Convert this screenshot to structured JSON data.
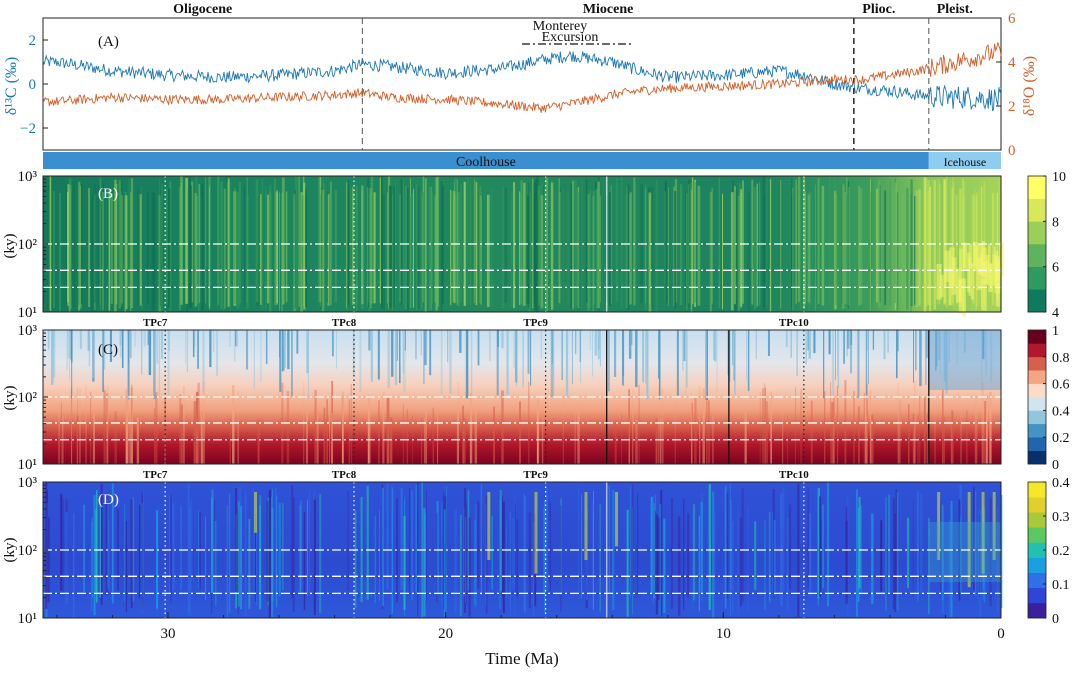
{
  "chart_data": {
    "type": "multi-panel",
    "x_axis": {
      "label": "Time (Ma)",
      "range": [
        34.5,
        0
      ],
      "ticks": [
        30,
        20,
        10,
        0
      ]
    },
    "epochs": [
      {
        "name": "Oligocene",
        "start": 34.5,
        "end": 23.0
      },
      {
        "name": "Miocene",
        "start": 23.0,
        "end": 5.3
      },
      {
        "name": "Plioc.",
        "start": 5.3,
        "end": 2.6
      },
      {
        "name": "Pleist.",
        "start": 2.6,
        "end": 0
      }
    ],
    "climate_states": [
      {
        "name": "Coolhouse",
        "start": 34.5,
        "end": 2.6,
        "color": "#3a8fd0"
      },
      {
        "name": "Icehouse",
        "start": 2.6,
        "end": 0,
        "color": "#8ecdf0"
      }
    ],
    "panel_a": {
      "label": "(A)",
      "annotation": [
        "Monterey",
        "Excursion"
      ],
      "annotation_range": [
        17.0,
        13.5
      ],
      "left_axis": {
        "label": "δ¹³C (‰)",
        "range": [
          -3,
          3
        ],
        "ticks": [
          -2,
          0,
          2
        ],
        "color": "#1f78b4"
      },
      "right_axis": {
        "label": "δ¹⁸O (‰)",
        "range": [
          0,
          6
        ],
        "ticks": [
          0,
          2,
          4,
          6
        ],
        "color": "#d4602a"
      },
      "series": [
        {
          "axis": "left",
          "color": "#1f78b4",
          "x": [
            34.0,
            32.0,
            30.0,
            28.0,
            26.0,
            24.0,
            23.0,
            22.0,
            20.0,
            18.0,
            16.5,
            15.5,
            14.0,
            13.0,
            12.0,
            10.0,
            8.0,
            7.0,
            6.0,
            5.0,
            4.0,
            3.0,
            2.0,
            1.0,
            0.0
          ],
          "y": [
            1.0,
            0.6,
            0.4,
            0.3,
            0.4,
            0.6,
            0.9,
            0.8,
            0.5,
            0.7,
            1.1,
            1.3,
            1.0,
            0.6,
            0.3,
            0.4,
            0.6,
            0.4,
            0.0,
            -0.2,
            -0.3,
            -0.5,
            -0.6,
            -0.6,
            -0.7
          ]
        },
        {
          "axis": "right",
          "color": "#d4602a",
          "x": [
            34.0,
            32.0,
            30.0,
            28.0,
            26.0,
            24.0,
            23.0,
            22.0,
            20.0,
            18.0,
            16.5,
            15.5,
            14.0,
            13.0,
            12.0,
            10.0,
            8.0,
            7.0,
            6.0,
            5.0,
            4.0,
            3.0,
            2.0,
            1.0,
            0.0
          ],
          "y": [
            2.2,
            2.4,
            2.3,
            2.3,
            2.4,
            2.5,
            2.6,
            2.4,
            2.3,
            2.1,
            1.9,
            2.1,
            2.5,
            2.7,
            2.8,
            2.9,
            3.0,
            3.1,
            3.2,
            3.2,
            3.4,
            3.6,
            3.9,
            4.2,
            4.5
          ]
        }
      ]
    },
    "tpc_markers": [
      {
        "name": "TPc7",
        "time": 30.1
      },
      {
        "name": "TPc8",
        "time": 23.3
      },
      {
        "name": "TPc9",
        "time": 16.4
      },
      {
        "name": "TPc10",
        "time": 7.1
      }
    ],
    "solid_boundaries": [
      14.2,
      9.8,
      2.6
    ],
    "panel_b": {
      "label": "(B)",
      "type": "heatmap",
      "y_axis": {
        "label": "(ky)",
        "scale": "log",
        "range": [
          10,
          1000
        ],
        "ticks": [
          "10¹",
          "10²",
          "10³"
        ]
      },
      "colorbar": {
        "range": [
          4,
          10
        ],
        "ticks": [
          4,
          6,
          8,
          10
        ],
        "colors": [
          "#0e7a5e",
          "#2f9a60",
          "#5fb35c",
          "#9bcf58",
          "#d8e85a",
          "#ffff66"
        ]
      },
      "reference_periods_ky": [
        100,
        41,
        23
      ]
    },
    "panel_c": {
      "label": "(C)",
      "type": "heatmap",
      "y_axis": {
        "label": "(ky)",
        "scale": "log",
        "range": [
          10,
          1000
        ],
        "ticks": [
          "10¹",
          "10²",
          "10³"
        ]
      },
      "colorbar": {
        "range": [
          0,
          1
        ],
        "ticks": [
          0,
          0.2,
          0.4,
          0.6,
          0.8,
          1
        ],
        "colors": [
          "#08306b",
          "#2166ac",
          "#4393c3",
          "#92c5de",
          "#d1e5f0",
          "#fddbc7",
          "#f4a582",
          "#d6604d",
          "#b2182b",
          "#67001f"
        ]
      },
      "reference_periods_ky": [
        100,
        41,
        23
      ]
    },
    "panel_d": {
      "label": "(D)",
      "type": "heatmap",
      "y_axis": {
        "label": "(ky)",
        "scale": "log",
        "range": [
          10,
          1000
        ],
        "ticks": [
          "10¹",
          "10²",
          "10³"
        ]
      },
      "colorbar": {
        "range": [
          0,
          0.4
        ],
        "ticks": [
          0,
          0.1,
          0.2,
          0.3,
          0.4
        ],
        "colors": [
          "#3b1f9c",
          "#2f45d8",
          "#2f6fe8",
          "#1aa0e0",
          "#22c0b0",
          "#5cc862",
          "#a8c93a",
          "#e0d02e",
          "#f5e82a"
        ]
      },
      "reference_periods_ky": [
        100,
        41,
        23
      ]
    }
  }
}
